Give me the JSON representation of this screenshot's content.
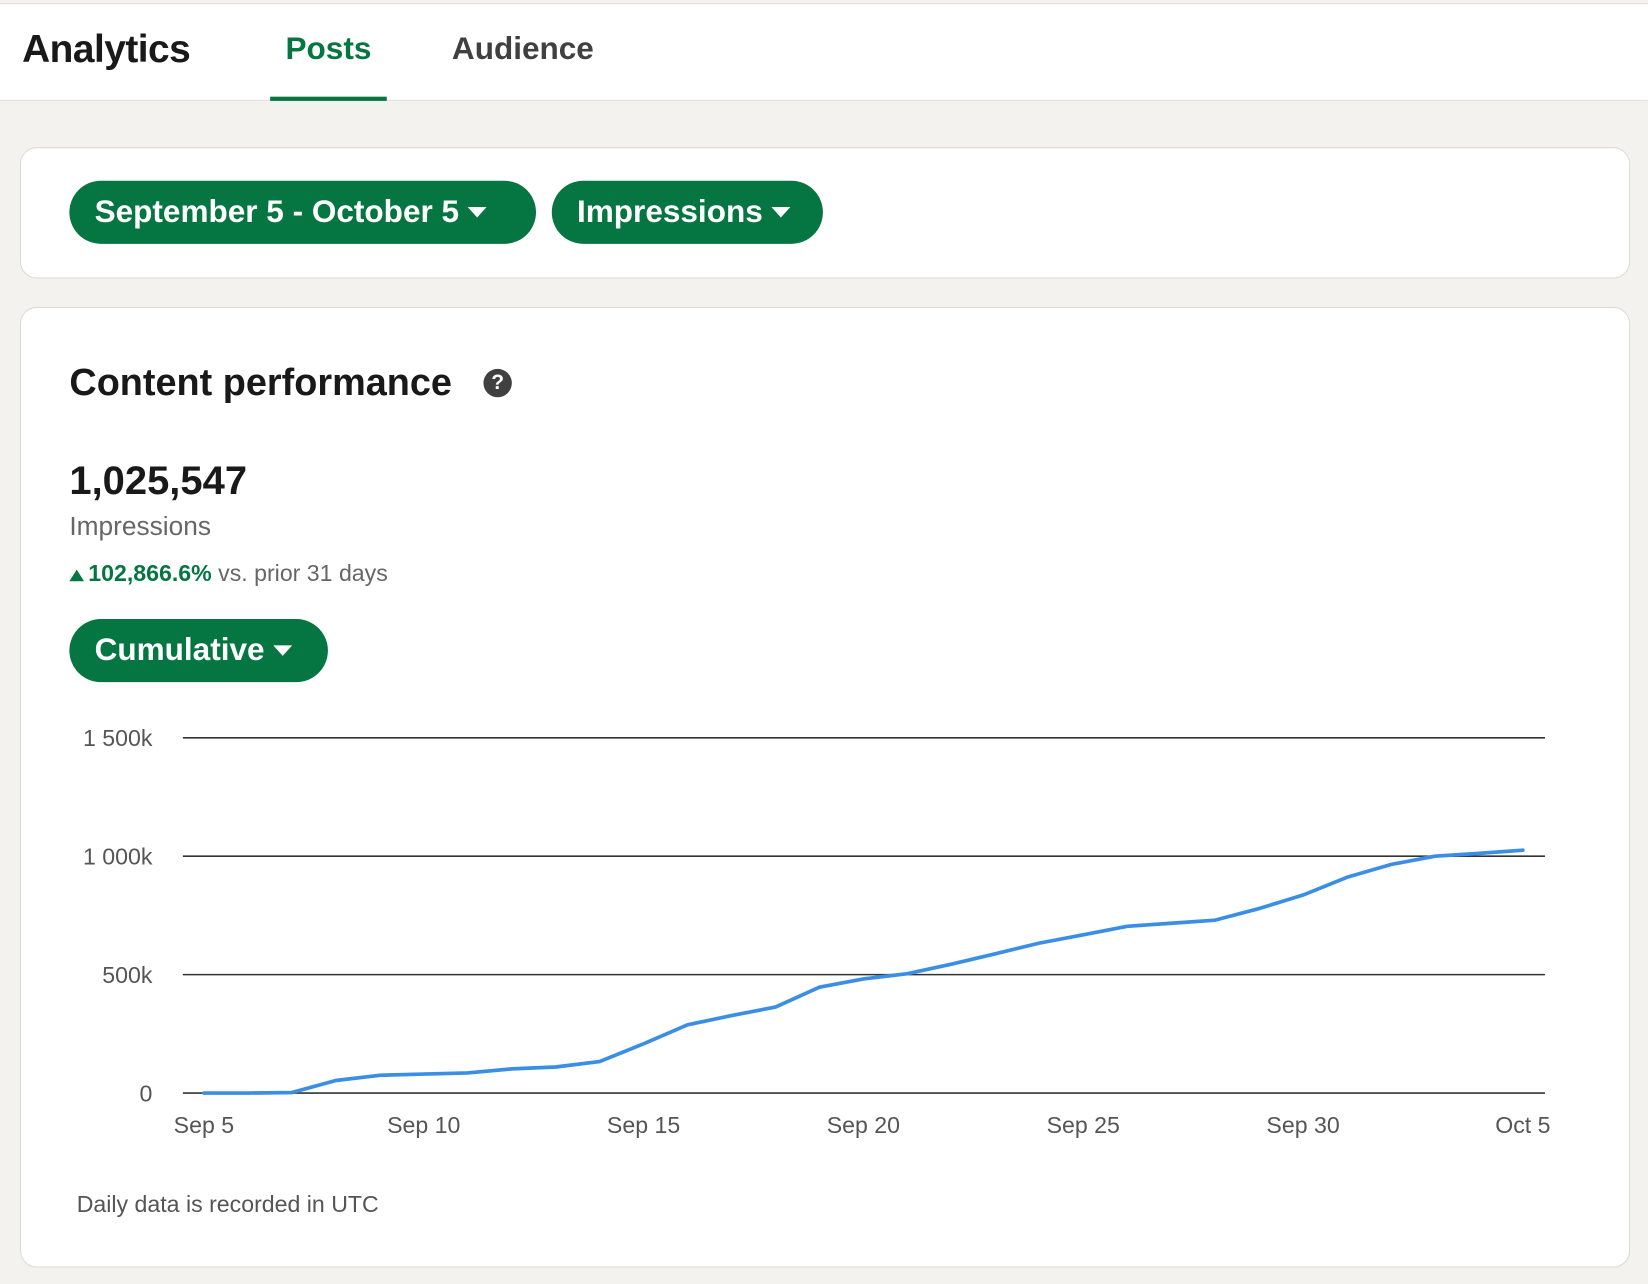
{
  "header": {
    "title": "Analytics",
    "tabs": [
      {
        "label": "Posts",
        "active": true
      },
      {
        "label": "Audience",
        "active": false
      }
    ]
  },
  "filters": {
    "date_range": "September 5 - October 5",
    "metric": "Impressions"
  },
  "content": {
    "title": "Content performance",
    "help_icon": "question-circle-icon",
    "total": "1,025,547",
    "total_label": "Impressions",
    "change_pct": "102,866.6%",
    "change_suffix": "vs. prior 31 days",
    "mode": "Cumulative",
    "footnote": "Daily data is recorded in UTC"
  },
  "colors": {
    "accent": "#057642",
    "line": "#3a8ee6"
  },
  "chart_data": {
    "type": "line",
    "title": "",
    "xlabel": "",
    "ylabel": "",
    "ylim": [
      0,
      1500000
    ],
    "y_ticks": [
      0,
      500000,
      1000000,
      1500000
    ],
    "y_tick_labels": [
      "0",
      "500k",
      "1 000k",
      "1 500k"
    ],
    "x_tick_labels": [
      "Sep 5",
      "Sep 10",
      "Sep 15",
      "Sep 20",
      "Sep 25",
      "Sep 30",
      "Oct 5"
    ],
    "x_tick_index": [
      0,
      5,
      10,
      15,
      20,
      25,
      30
    ],
    "grid": true,
    "series": [
      {
        "name": "Impressions (cumulative)",
        "values": [
          0,
          0,
          2000,
          53000,
          75000,
          80000,
          85000,
          102000,
          110000,
          133000,
          208000,
          288000,
          327000,
          363000,
          447000,
          482000,
          504000,
          544000,
          588000,
          633000,
          668000,
          704000,
          717000,
          730000,
          779000,
          836000,
          911000,
          965000,
          1000000,
          1012000,
          1025547
        ]
      }
    ]
  }
}
